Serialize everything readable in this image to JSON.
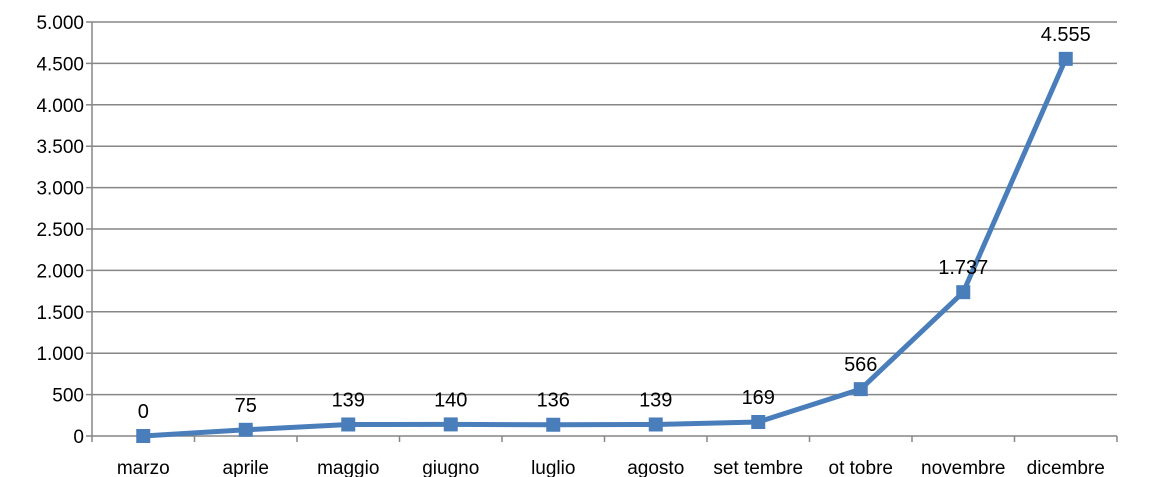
{
  "chart_data": {
    "type": "line",
    "title": "",
    "xlabel": "",
    "ylabel": "",
    "categories": [
      "marzo",
      "aprile",
      "maggio",
      "giugno",
      "luglio",
      "agosto",
      "set tembre",
      "ot tobre",
      "novembre",
      "dicembre"
    ],
    "series": [
      {
        "values": [
          0,
          75,
          139,
          140,
          136,
          139,
          169,
          566,
          1737,
          4555
        ],
        "labels": [
          "0",
          "75",
          "139",
          "140",
          "136",
          "139",
          "169",
          "566",
          "1.737",
          "4.555"
        ],
        "color": "#4a7ebb",
        "marker": "square"
      }
    ],
    "ylim": [
      0,
      5000
    ],
    "yticks": [
      0,
      500,
      1000,
      1500,
      2000,
      2500,
      3000,
      3500,
      4000,
      4500,
      5000
    ],
    "ytick_labels": [
      "0",
      "500",
      "1.000",
      "1.500",
      "2.000",
      "2.500",
      "3.000",
      "3.500",
      "4.000",
      "4.500",
      "5.000"
    ],
    "grid": true,
    "gridline_color": "#868686",
    "axis_color": "#868686",
    "legend": "none"
  }
}
